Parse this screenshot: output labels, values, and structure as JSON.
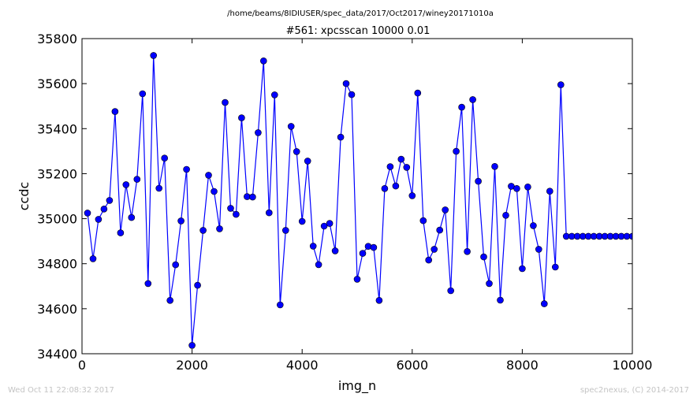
{
  "header": {
    "path": "/home/beams/8IDIUSER/spec_data/2017/Oct2017/winey20171010a"
  },
  "footer": {
    "timestamp": "Wed Oct 11 22:08:32 2017",
    "credit": "spec2nexus, (C) 2014-2017"
  },
  "chart_data": {
    "type": "line",
    "title": "#561: xpcsscan 10000 0.01",
    "xlabel": "img_n",
    "ylabel": "ccdc",
    "xlim": [
      0,
      10000
    ],
    "ylim": [
      34400,
      35800
    ],
    "xticks": [
      0,
      2000,
      4000,
      6000,
      8000,
      10000
    ],
    "yticks": [
      34400,
      34600,
      34800,
      35000,
      35200,
      35400,
      35600,
      35800
    ],
    "grid": false,
    "marker": "circle",
    "color": "#0000ff",
    "series": [
      {
        "x": [
          100,
          200,
          300,
          400,
          500,
          600,
          700,
          800,
          900,
          1000,
          1100,
          1200,
          1300,
          1400,
          1500,
          1600,
          1700,
          1800,
          1900,
          2000,
          2100,
          2200,
          2300,
          2400,
          2500,
          2600,
          2700,
          2800,
          2900,
          3000,
          3100,
          3200,
          3300,
          3400,
          3500,
          3600,
          3700,
          3800,
          3900,
          4000,
          4100,
          4200,
          4300,
          4400,
          4500,
          4600,
          4700,
          4800,
          4900,
          5000,
          5100,
          5200,
          5300,
          5400,
          5500,
          5600,
          5700,
          5800,
          5900,
          6000,
          6100,
          6200,
          6300,
          6400,
          6500,
          6600,
          6700,
          6800,
          6900,
          7000,
          7100,
          7200,
          7300,
          7400,
          7500,
          7600,
          7700,
          7800,
          7900,
          8000,
          8100,
          8200,
          8300,
          8400,
          8500,
          8600,
          8700,
          8800,
          8900,
          9000,
          9100,
          9200,
          9300,
          9400,
          9500,
          9600,
          9700,
          9800,
          9900,
          10000
        ],
        "y": [
          35025,
          34822,
          34997,
          35043,
          35081,
          35476,
          34937,
          35151,
          35005,
          35175,
          35555,
          34712,
          35725,
          35135,
          35269,
          34637,
          34795,
          34990,
          35219,
          34437,
          34704,
          34948,
          35193,
          35121,
          34955,
          35516,
          35046,
          35019,
          35448,
          35098,
          35096,
          35382,
          35701,
          35026,
          35550,
          34617,
          34948,
          35410,
          35298,
          34988,
          35256,
          34878,
          34796,
          34967,
          34979,
          34857,
          35362,
          35600,
          35551,
          34731,
          34846,
          34877,
          34872,
          34637,
          35134,
          35231,
          35145,
          35264,
          35228,
          35102,
          35558,
          34991,
          34816,
          34864,
          34949,
          35039,
          34680,
          35299,
          35495,
          34854,
          35529,
          35166,
          34830,
          34712,
          35232,
          34638,
          35015,
          35144,
          35134,
          34778,
          35141,
          34969,
          34864,
          34622,
          35122,
          34785,
          35595,
          34922,
          34922,
          34922,
          34922,
          34922,
          34922,
          34922,
          34922,
          34922,
          34922,
          34922,
          34922,
          34922
        ]
      }
    ]
  }
}
